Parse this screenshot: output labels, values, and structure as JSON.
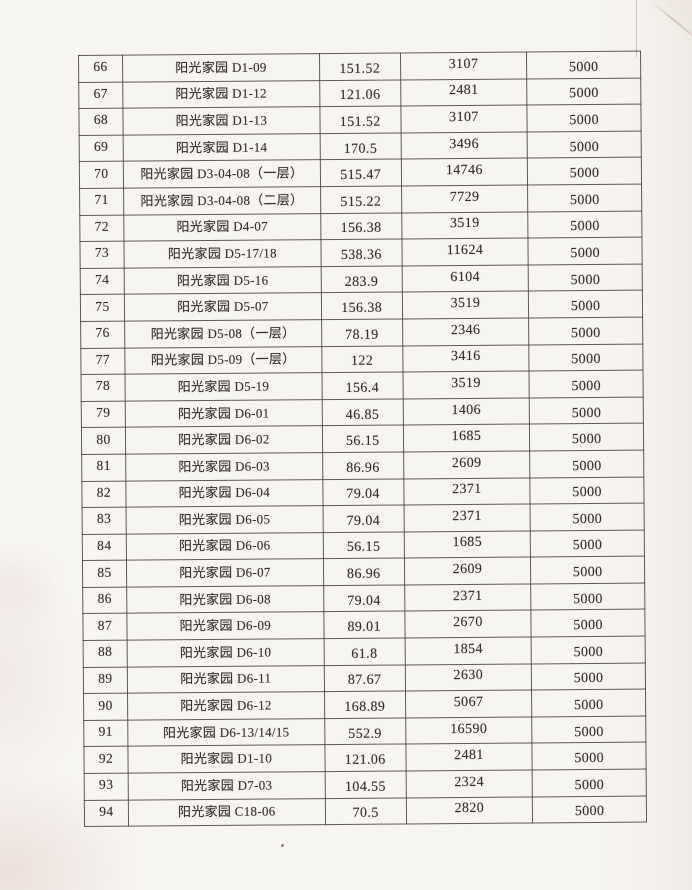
{
  "colors": {
    "paper": "#f6f4f0",
    "ink": "#36322b",
    "table_border": "#3e3930",
    "stain_pink": "#dbc0b9"
  },
  "table": {
    "rows": [
      {
        "no": "66",
        "name": "阳光家园 D1-09",
        "area": "151.52",
        "amount": "3107",
        "deposit": "5000"
      },
      {
        "no": "67",
        "name": "阳光家园 D1-12",
        "area": "121.06",
        "amount": "2481",
        "deposit": "5000"
      },
      {
        "no": "68",
        "name": "阳光家园 D1-13",
        "area": "151.52",
        "amount": "3107",
        "deposit": "5000"
      },
      {
        "no": "69",
        "name": "阳光家园 D1-14",
        "area": "170.5",
        "amount": "3496",
        "deposit": "5000"
      },
      {
        "no": "70",
        "name": "阳光家园 D3-04-08（一层）",
        "area": "515.47",
        "amount": "14746",
        "deposit": "5000"
      },
      {
        "no": "71",
        "name": "阳光家园 D3-04-08（二层）",
        "area": "515.22",
        "amount": "7729",
        "deposit": "5000"
      },
      {
        "no": "72",
        "name": "阳光家园 D4-07",
        "area": "156.38",
        "amount": "3519",
        "deposit": "5000"
      },
      {
        "no": "73",
        "name": "阳光家园 D5-17/18",
        "area": "538.36",
        "amount": "11624",
        "deposit": "5000"
      },
      {
        "no": "74",
        "name": "阳光家园 D5-16",
        "area": "283.9",
        "amount": "6104",
        "deposit": "5000"
      },
      {
        "no": "75",
        "name": "阳光家园 D5-07",
        "area": "156.38",
        "amount": "3519",
        "deposit": "5000"
      },
      {
        "no": "76",
        "name": "阳光家园 D5-08（一层）",
        "area": "78.19",
        "amount": "2346",
        "deposit": "5000"
      },
      {
        "no": "77",
        "name": "阳光家园 D5-09（一层）",
        "area": "122",
        "amount": "3416",
        "deposit": "5000"
      },
      {
        "no": "78",
        "name": "阳光家园 D5-19",
        "area": "156.4",
        "amount": "3519",
        "deposit": "5000"
      },
      {
        "no": "79",
        "name": "阳光家园 D6-01",
        "area": "46.85",
        "amount": "1406",
        "deposit": "5000"
      },
      {
        "no": "80",
        "name": "阳光家园 D6-02",
        "area": "56.15",
        "amount": "1685",
        "deposit": "5000"
      },
      {
        "no": "81",
        "name": "阳光家园 D6-03",
        "area": "86.96",
        "amount": "2609",
        "deposit": "5000"
      },
      {
        "no": "82",
        "name": "阳光家园 D6-04",
        "area": "79.04",
        "amount": "2371",
        "deposit": "5000"
      },
      {
        "no": "83",
        "name": "阳光家园 D6-05",
        "area": "79.04",
        "amount": "2371",
        "deposit": "5000"
      },
      {
        "no": "84",
        "name": "阳光家园 D6-06",
        "area": "56.15",
        "amount": "1685",
        "deposit": "5000"
      },
      {
        "no": "85",
        "name": "阳光家园 D6-07",
        "area": "86.96",
        "amount": "2609",
        "deposit": "5000"
      },
      {
        "no": "86",
        "name": "阳光家园 D6-08",
        "area": "79.04",
        "amount": "2371",
        "deposit": "5000"
      },
      {
        "no": "87",
        "name": "阳光家园 D6-09",
        "area": "89.01",
        "amount": "2670",
        "deposit": "5000"
      },
      {
        "no": "88",
        "name": "阳光家园 D6-10",
        "area": "61.8",
        "amount": "1854",
        "deposit": "5000"
      },
      {
        "no": "89",
        "name": "阳光家园 D6-11",
        "area": "87.67",
        "amount": "2630",
        "deposit": "5000"
      },
      {
        "no": "90",
        "name": "阳光家园 D6-12",
        "area": "168.89",
        "amount": "5067",
        "deposit": "5000"
      },
      {
        "no": "91",
        "name": "阳光家园 D6-13/14/15",
        "area": "552.9",
        "amount": "16590",
        "deposit": "5000"
      },
      {
        "no": "92",
        "name": "阳光家园 D1-10",
        "area": "121.06",
        "amount": "2481",
        "deposit": "5000"
      },
      {
        "no": "93",
        "name": "阳光家园 D7-03",
        "area": "104.55",
        "amount": "2324",
        "deposit": "5000"
      },
      {
        "no": "94",
        "name": "阳光家园 C18-06",
        "area": "70.5",
        "amount": "2820",
        "deposit": "5000"
      }
    ]
  }
}
